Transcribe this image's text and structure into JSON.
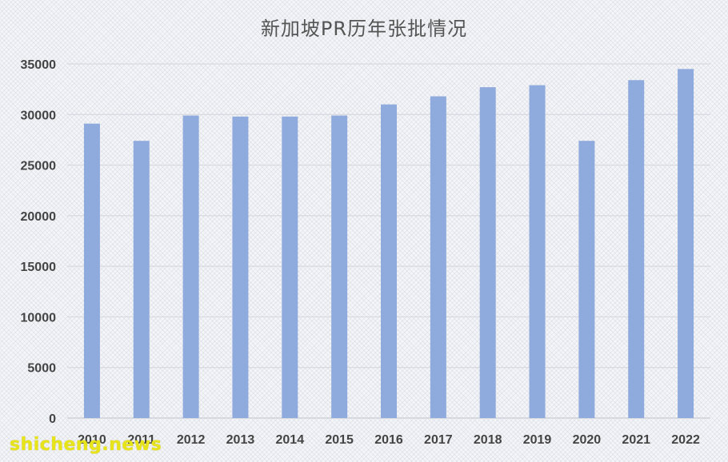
{
  "chart_data": {
    "type": "bar",
    "title": "新加坡PR历年张批情况",
    "xlabel": "",
    "ylabel": "",
    "categories": [
      "2010",
      "2011",
      "2012",
      "2013",
      "2014",
      "2015",
      "2016",
      "2017",
      "2018",
      "2019",
      "2020",
      "2021",
      "2022"
    ],
    "values": [
      29100,
      27400,
      29900,
      29800,
      29800,
      29900,
      31000,
      31800,
      32700,
      32900,
      27400,
      33400,
      34500
    ],
    "ylim": [
      0,
      35000
    ],
    "yticks": [
      "0",
      "5000",
      "10000",
      "15000",
      "20000",
      "25000",
      "30000",
      "35000"
    ],
    "grid": true,
    "legend": "none",
    "bar_color": "#8faadc",
    "grid_color": "#d6d9e0"
  },
  "watermark": "shicheng.news"
}
